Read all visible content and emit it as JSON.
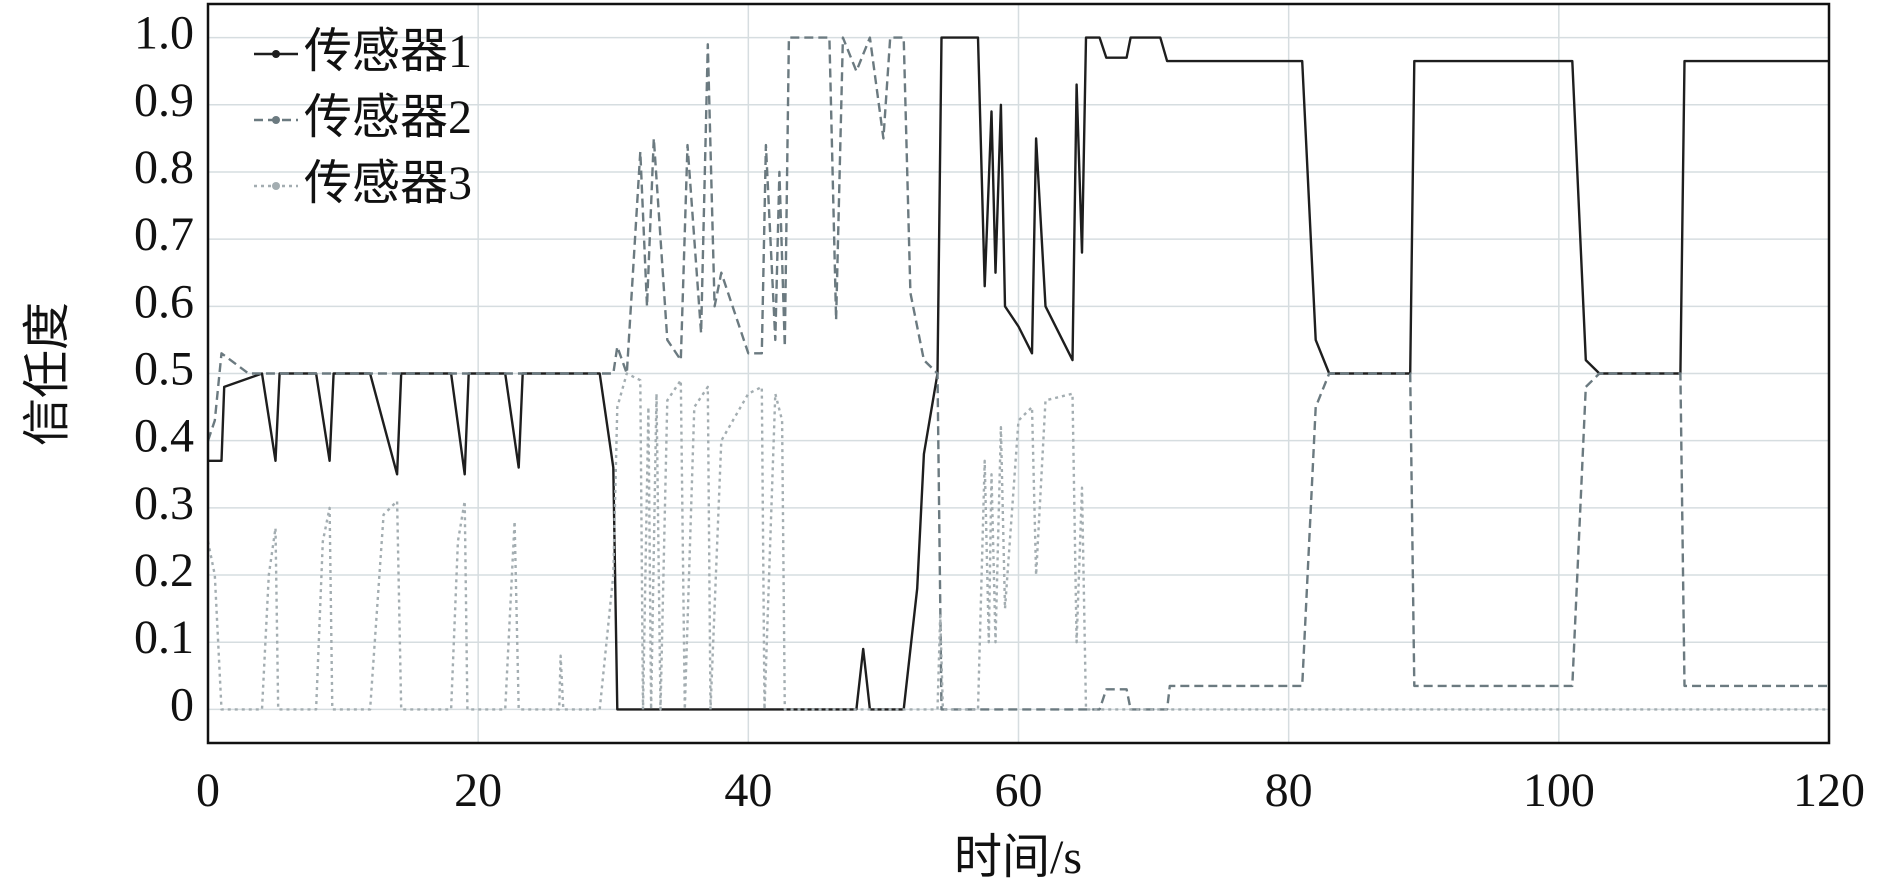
{
  "chart_data": {
    "type": "line",
    "xlabel": "时间/s",
    "ylabel": "信任度",
    "xlim": [
      0,
      120
    ],
    "ylim": [
      -0.05,
      1.05
    ],
    "xticks": [
      0,
      20,
      40,
      60,
      80,
      100,
      120
    ],
    "yticks": [
      0,
      0.1,
      0.2,
      0.3,
      0.4,
      0.5,
      0.6,
      0.7,
      0.8,
      0.9,
      {
        "value": 1,
        "label": "1.0"
      }
    ],
    "grid": true,
    "legend": "upper-left",
    "series": [
      {
        "name": "传感器1",
        "color": "#1e1e1e",
        "dash": "solid",
        "x": [
          0,
          1,
          1.2,
          4,
          5,
          5.3,
          8,
          9,
          9.3,
          12,
          14,
          14.3,
          18,
          19,
          19.3,
          22,
          23,
          23.3,
          29,
          30,
          30.3,
          48,
          48.5,
          49,
          51.5,
          52.5,
          53,
          54,
          54.3,
          57,
          57.5,
          58,
          58.3,
          58.7,
          59,
          60,
          61,
          61.3,
          62,
          64,
          64.3,
          64.7,
          65,
          66,
          66.5,
          68,
          68.3,
          70.5,
          71,
          81,
          82,
          83,
          89,
          89.3,
          101,
          102,
          103,
          109,
          109.3,
          120
        ],
        "values": [
          0.37,
          0.37,
          0.48,
          0.5,
          0.37,
          0.5,
          0.5,
          0.37,
          0.5,
          0.5,
          0.35,
          0.5,
          0.5,
          0.35,
          0.5,
          0.5,
          0.36,
          0.5,
          0.5,
          0.36,
          0,
          0,
          0.09,
          0,
          0,
          0.18,
          0.38,
          0.5,
          1,
          1,
          0.63,
          0.89,
          0.65,
          0.9,
          0.6,
          0.57,
          0.53,
          0.85,
          0.6,
          0.52,
          0.93,
          0.68,
          1,
          1,
          0.97,
          0.97,
          1,
          1,
          0.965,
          0.965,
          0.55,
          0.5,
          0.5,
          0.965,
          0.965,
          0.52,
          0.5,
          0.5,
          0.965,
          0.965
        ]
      },
      {
        "name": "传感器2",
        "color": "#6b7a80",
        "dash": "dashed",
        "x": [
          0,
          0.5,
          1,
          3,
          30,
          30.3,
          31,
          32,
          32.5,
          33,
          34,
          35,
          35.5,
          36.5,
          37,
          37.5,
          38,
          40,
          41,
          41.3,
          42,
          42.3,
          42.7,
          43,
          46,
          46.5,
          47,
          48,
          49,
          50,
          50.5,
          51.5,
          52,
          53,
          54,
          54.3,
          66,
          66.5,
          68,
          68.3,
          71,
          71.2,
          81,
          82,
          83,
          89,
          89.3,
          101,
          102,
          103,
          109,
          109.3,
          120
        ],
        "values": [
          0.4,
          0.43,
          0.53,
          0.5,
          0.5,
          0.54,
          0.5,
          0.83,
          0.6,
          0.85,
          0.55,
          0.52,
          0.84,
          0.56,
          0.99,
          0.6,
          0.65,
          0.53,
          0.53,
          0.84,
          0.55,
          0.8,
          0.54,
          1,
          1,
          0.58,
          1,
          0.95,
          1,
          0.85,
          1,
          1,
          0.62,
          0.52,
          0.5,
          0,
          0,
          0.03,
          0.03,
          0,
          0,
          0.035,
          0.035,
          0.45,
          0.5,
          0.5,
          0.035,
          0.035,
          0.48,
          0.5,
          0.5,
          0.035,
          0.035
        ]
      },
      {
        "name": "传感器3",
        "color": "#a3adb1",
        "dash": "dotted",
        "x": [
          0,
          0.5,
          1,
          4,
          4.5,
          5,
          5.2,
          8,
          8.5,
          9,
          9.2,
          12,
          13,
          14,
          14.3,
          18,
          18.5,
          19,
          19.2,
          22,
          22.7,
          23,
          26,
          26.1,
          26.3,
          29,
          30,
          30.3,
          31,
          32,
          32.2,
          32.6,
          32.8,
          33.2,
          33.5,
          34,
          35,
          35.3,
          36,
          37,
          37.2,
          38,
          40,
          41,
          41.2,
          42,
          42.5,
          42.7,
          54,
          54.2,
          54.4,
          57,
          57.5,
          57.8,
          58,
          58.3,
          58.7,
          59,
          60,
          61,
          61.3,
          62,
          64,
          64.3,
          64.7,
          65,
          120
        ],
        "values": [
          0.25,
          0.2,
          0,
          0,
          0.2,
          0.27,
          0,
          0,
          0.25,
          0.3,
          0,
          0,
          0.29,
          0.31,
          0,
          0,
          0.25,
          0.31,
          0,
          0,
          0.28,
          0,
          0,
          0.08,
          0,
          0,
          0.2,
          0.45,
          0.5,
          0.49,
          0,
          0.45,
          0,
          0.47,
          0,
          0.46,
          0.49,
          0,
          0.45,
          0.48,
          0,
          0.4,
          0.47,
          0.48,
          0,
          0.47,
          0.43,
          0,
          0,
          0.14,
          0,
          0,
          0.37,
          0.1,
          0.35,
          0.1,
          0.42,
          0.15,
          0.43,
          0.45,
          0.2,
          0.46,
          0.47,
          0.1,
          0.33,
          0,
          0
        ]
      }
    ]
  }
}
